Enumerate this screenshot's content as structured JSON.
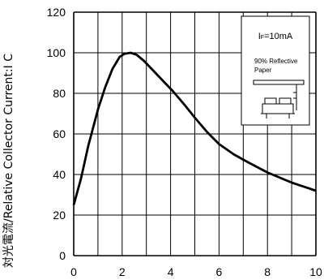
{
  "chart_data": {
    "type": "line",
    "ylabel": "対光電流/Relative Collector Current:I C",
    "xlim": [
      0,
      10
    ],
    "ylim": [
      0,
      120
    ],
    "x_ticks": [
      "0",
      "2",
      "4",
      "6",
      "8",
      "10"
    ],
    "y_ticks": [
      "0",
      "20",
      "40",
      "60",
      "80",
      "100",
      "120"
    ],
    "grid": true,
    "series": [
      {
        "x": [
          0,
          0.3,
          0.6,
          1.0,
          1.3,
          1.6,
          1.9,
          2.1,
          2.35,
          2.6,
          2.9,
          3.3,
          3.7,
          4.1,
          4.6,
          5.0,
          5.5,
          6.0,
          6.6,
          7.2,
          8.0,
          9.0,
          10.0
        ],
        "y": [
          25,
          38,
          54,
          72,
          83,
          92,
          98,
          99.5,
          100,
          99,
          96,
          91,
          86,
          81,
          74,
          68,
          61,
          55,
          50,
          46,
          41,
          36,
          32
        ]
      }
    ],
    "annotations": {
      "condition": "IF=10mA",
      "condition_main": "I",
      "condition_sub": "F",
      "condition_value": "=10mA",
      "inset_line1": "90% Reflective",
      "inset_line2": "Paper"
    }
  }
}
